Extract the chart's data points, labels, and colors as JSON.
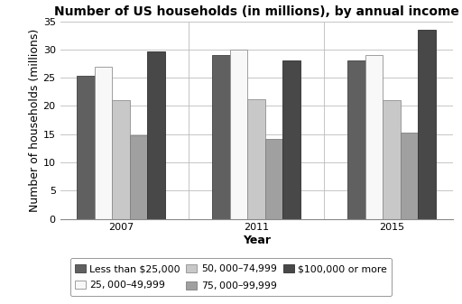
{
  "title": "Number of US households (in millions), by annual income",
  "xlabel": "Year",
  "ylabel": "Number of households (millions)",
  "years": [
    "2007",
    "2011",
    "2015"
  ],
  "categories": [
    "Less than $25,000",
    "$25,000–$49,999",
    "$50,000–$74,999",
    "$75,000–$99,999",
    "$100,000 or more"
  ],
  "values": {
    "Less than $25,000": [
      25.3,
      29.0,
      28.1
    ],
    "$25,000–$49,999": [
      27.0,
      30.0,
      29.0
    ],
    "$50,000–$74,999": [
      21.0,
      21.2,
      21.0
    ],
    "$75,000–$99,999": [
      14.8,
      14.2,
      15.3
    ],
    "$100,000 or more": [
      29.7,
      28.0,
      33.5
    ]
  },
  "colors": {
    "Less than $25,000": "#606060",
    "$25,000–$49,999": "#f8f8f8",
    "$50,000–$74,999": "#c8c8c8",
    "$75,000–$99,999": "#a0a0a0",
    "$100,000 or more": "#484848"
  },
  "edge_colors": {
    "Less than $25,000": "#404040",
    "$25,000–$49,999": "#909090",
    "$50,000–$74,999": "#909090",
    "$75,000–$99,999": "#808080",
    "$100,000 or more": "#303030"
  },
  "ylim": [
    0,
    35
  ],
  "yticks": [
    0,
    5,
    10,
    15,
    20,
    25,
    30,
    35
  ],
  "bar_width": 0.13,
  "background_color": "#ffffff",
  "title_fontsize": 10,
  "axis_label_fontsize": 9,
  "tick_fontsize": 8,
  "legend_fontsize": 7.8
}
